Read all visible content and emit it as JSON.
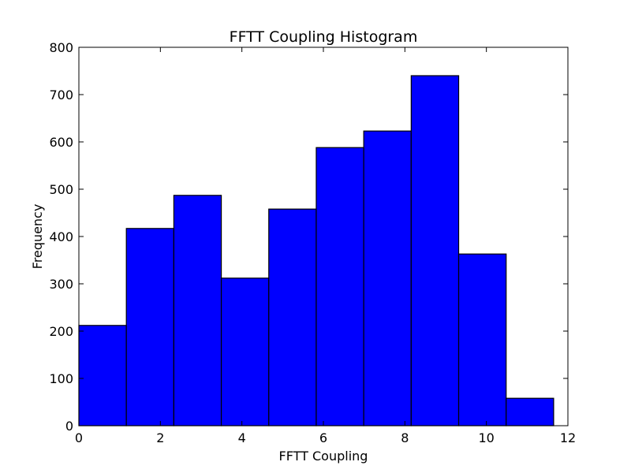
{
  "chart_data": {
    "type": "bar",
    "title": "FFTT Coupling Histogram",
    "xlabel": "FFTT Coupling",
    "ylabel": "Frequency",
    "xlim": [
      0,
      12
    ],
    "ylim": [
      0,
      800
    ],
    "xticks": [
      0,
      2,
      4,
      6,
      8,
      10,
      12
    ],
    "yticks": [
      0,
      100,
      200,
      300,
      400,
      500,
      600,
      700,
      800
    ],
    "bin_edges": [
      0,
      1.165,
      2.33,
      3.495,
      4.66,
      5.825,
      6.99,
      8.155,
      9.32,
      10.485,
      11.65
    ],
    "values": [
      212,
      417,
      487,
      312,
      458,
      588,
      623,
      740,
      363,
      58
    ],
    "bar_color": "#0000ff",
    "edge_color": "#000000",
    "grid": false
  }
}
